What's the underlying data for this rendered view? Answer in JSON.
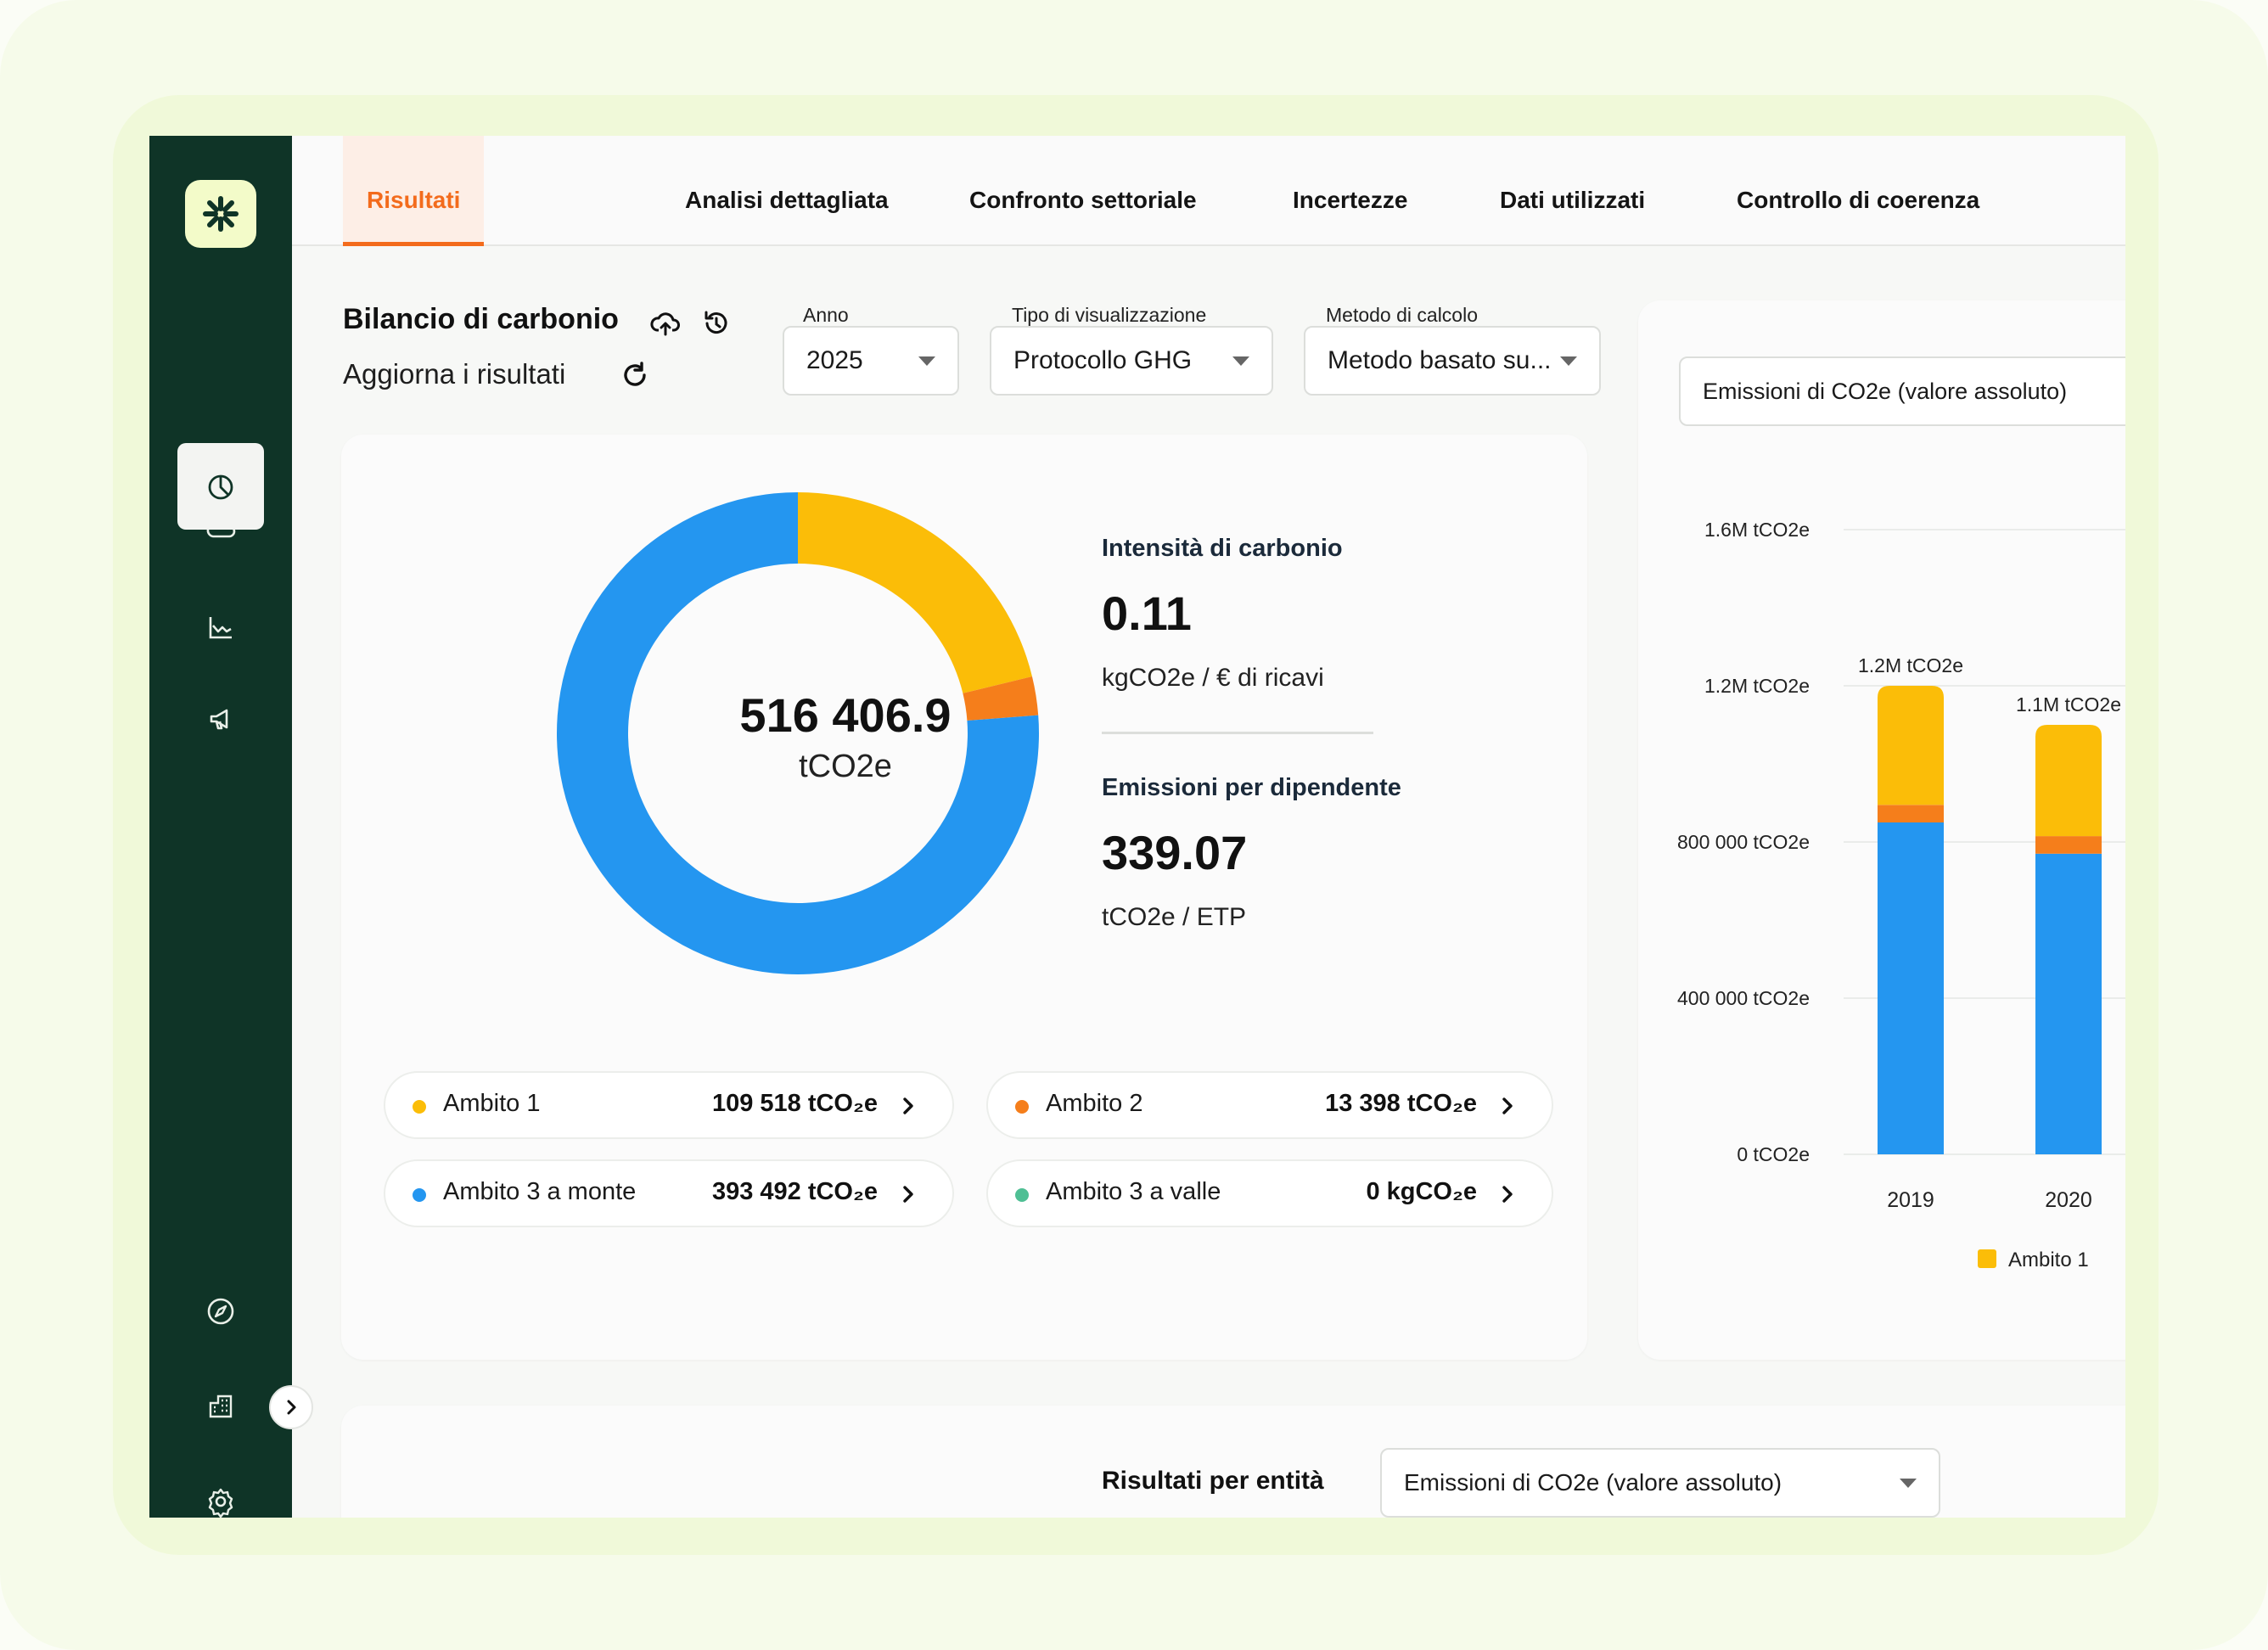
{
  "tabs": [
    {
      "label": "Risultati",
      "active": true
    },
    {
      "label": "Analisi dettagliata"
    },
    {
      "label": "Confronto settoriale"
    },
    {
      "label": "Incertezze"
    },
    {
      "label": "Dati utilizzati"
    },
    {
      "label": "Controllo di coerenza"
    }
  ],
  "header": {
    "title": "Bilancio di carbonio",
    "refresh_label": "Aggiorna i risultati"
  },
  "filters": {
    "year": {
      "label": "Anno",
      "value": "2025"
    },
    "view_type": {
      "label": "Tipo di visualizzazione",
      "value": "Protocollo GHG"
    },
    "method": {
      "label": "Metodo di calcolo",
      "value": "Metodo basato su..."
    }
  },
  "summary": {
    "total": "516 406.9",
    "total_unit": "tCO2e",
    "intensity_label": "Intensità di carbonio",
    "intensity_value": "0.11",
    "intensity_unit": "kgCO2e / € di ricavi",
    "per_employee_label": "Emissioni per dipendente",
    "per_employee_value": "339.07",
    "per_employee_unit": "tCO2e / ETP"
  },
  "scopes": [
    {
      "name": "Ambito 1",
      "value": "109 518 tCO₂e",
      "color": "#fbbd08"
    },
    {
      "name": "Ambito 2",
      "value": "13 398 tCO₂e",
      "color": "#f57e1b"
    },
    {
      "name": "Ambito 3 a monte",
      "value": "393 492 tCO₂e",
      "color": "#2496f0"
    },
    {
      "name": "Ambito 3 a valle",
      "value": "0 kgCO₂e",
      "color": "#4fbf94"
    }
  ],
  "right_panel": {
    "metric_select": "Emissioni di CO2e (valore assoluto)"
  },
  "bottom": {
    "title": "Risultati per entità",
    "select": "Emissioni di CO2e (valore assoluto)"
  },
  "chart_data": [
    {
      "type": "pie",
      "title": "",
      "labels": [
        "Ambito 1",
        "Ambito 2",
        "Ambito 3 a monte",
        "Ambito 3 a valle"
      ],
      "values": [
        109518,
        13398,
        393492,
        0
      ],
      "colors": [
        "#fbbd08",
        "#f57e1b",
        "#2496f0",
        "#4fbf94"
      ],
      "center_label": "516 406.9"
    },
    {
      "type": "bar",
      "stacked": true,
      "categories": [
        "2019",
        "2020"
      ],
      "series": [
        {
          "name": "Ambito 1",
          "values": [
            1200000,
            1100000
          ],
          "color": "#fbbd08"
        }
      ],
      "segments": [
        {
          "values": [
            850000,
            770000
          ],
          "color": "#2496f0"
        },
        {
          "values": [
            45000,
            45000
          ],
          "color": "#f57e1b"
        },
        {
          "values": [
            305000,
            285000
          ],
          "color": "#fbbd08"
        }
      ],
      "bar_labels": [
        "1.2M tCO2e",
        "1.1M tCO2e"
      ],
      "y_ticks": [
        "0 tCO2e",
        "400 000 tCO2e",
        "800 000 tCO2e",
        "1.2M tCO2e",
        "1.6M tCO2e"
      ],
      "y_tick_values": [
        0,
        400000,
        800000,
        1200000,
        1600000
      ],
      "ylim": [
        0,
        1600000
      ],
      "legend": "bottom-right"
    }
  ]
}
